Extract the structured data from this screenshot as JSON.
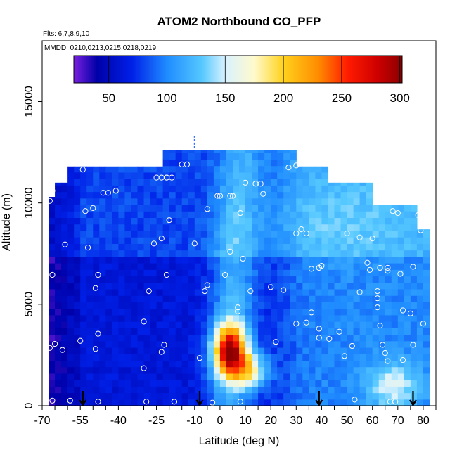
{
  "chart_data": {
    "type": "heatmap",
    "title": "ATOM2 Northbound CO_PFP",
    "annotations": [
      "Flts: 6,7,8,9,10",
      "MMDD: 0210,0213,0215,0218,0219"
    ],
    "xlabel": "Latitude (deg N)",
    "ylabel": "Altitude (m)",
    "xlim": [
      -70,
      85
    ],
    "ylim": [
      0,
      18000
    ],
    "x_ticks": [
      "-70",
      "-55",
      "-40",
      "-25",
      "-10",
      "0",
      "10",
      "20",
      "30",
      "40",
      "50",
      "60",
      "70",
      "80"
    ],
    "x_tick_values": [
      -70,
      -55,
      -40,
      -25,
      -10,
      0,
      10,
      20,
      30,
      40,
      50,
      60,
      70,
      80
    ],
    "x_minor_ticks": [
      -65,
      -60,
      -50,
      -45,
      -35,
      -30,
      -20,
      -15,
      -5,
      5,
      15,
      25,
      35,
      45,
      55,
      65,
      75,
      85
    ],
    "y_ticks": [
      "0",
      "5000",
      "10000",
      "15000"
    ],
    "y_tick_values": [
      0,
      5000,
      10000,
      15000
    ],
    "colorbar": {
      "min": 20,
      "max": 302,
      "ticks": [
        "50",
        "100",
        "150",
        "200",
        "250",
        "300"
      ],
      "tick_values": [
        50,
        100,
        150,
        200,
        250,
        300
      ],
      "colors": [
        {
          "v": 20,
          "c": "#7a1fe0"
        },
        {
          "v": 40,
          "c": "#0000a8"
        },
        {
          "v": 70,
          "c": "#0020e8"
        },
        {
          "v": 100,
          "c": "#1f8cff"
        },
        {
          "v": 130,
          "c": "#55c8ff"
        },
        {
          "v": 150,
          "c": "#d8f2ff"
        },
        {
          "v": 175,
          "c": "#fffacc"
        },
        {
          "v": 200,
          "c": "#ffd21c"
        },
        {
          "v": 230,
          "c": "#ff8c00"
        },
        {
          "v": 255,
          "c": "#ff1c00"
        },
        {
          "v": 280,
          "c": "#d00000"
        },
        {
          "v": 302,
          "c": "#8c0000"
        }
      ]
    },
    "profile_latitudes": [
      -54,
      -8,
      39,
      76
    ],
    "samples": [
      [
        -67,
        10100
      ],
      [
        -66,
        10600
      ],
      [
        -67,
        11300
      ],
      [
        -62,
        11800
      ],
      [
        -61,
        7950
      ],
      [
        -66,
        6450
      ],
      [
        -67,
        2850
      ],
      [
        -65,
        3050
      ],
      [
        -62,
        2750
      ],
      [
        -66,
        250
      ],
      [
        -59,
        250
      ],
      [
        -54,
        11650
      ],
      [
        -53,
        9600
      ],
      [
        -52,
        7800
      ],
      [
        -55,
        3200
      ],
      [
        -50,
        9750
      ],
      [
        -46,
        10500
      ],
      [
        -44,
        10500
      ],
      [
        -41,
        10600
      ],
      [
        -49,
        5800
      ],
      [
        -48,
        6450
      ],
      [
        -48,
        3550
      ],
      [
        -49,
        2800
      ],
      [
        -48,
        200
      ],
      [
        -30,
        4150
      ],
      [
        -30,
        1850
      ],
      [
        -29,
        200
      ],
      [
        -26,
        8000
      ],
      [
        -28,
        5650
      ],
      [
        -25,
        11250
      ],
      [
        -23,
        11250
      ],
      [
        -21,
        11250
      ],
      [
        -21,
        11250
      ],
      [
        -19,
        11250
      ],
      [
        -15,
        11900
      ],
      [
        -13,
        11900
      ],
      [
        -23,
        8250
      ],
      [
        -20,
        9150
      ],
      [
        -21,
        6450
      ],
      [
        -23,
        2650
      ],
      [
        -22,
        3000
      ],
      [
        -18,
        200
      ],
      [
        -18,
        200
      ],
      [
        -10,
        8000
      ],
      [
        -5,
        5950
      ],
      [
        -6,
        5650
      ],
      [
        -5,
        9700
      ],
      [
        -8,
        2350
      ],
      [
        -3,
        150
      ],
      [
        -1,
        10350
      ],
      [
        0,
        10350
      ],
      [
        4,
        10350
      ],
      [
        5,
        10350
      ],
      [
        2,
        6450
      ],
      [
        4,
        7600
      ],
      [
        8,
        9500
      ],
      [
        9,
        7250
      ],
      [
        7,
        4850
      ],
      [
        7,
        4650
      ],
      [
        8,
        200
      ],
      [
        10,
        11000
      ],
      [
        14,
        10950
      ],
      [
        16,
        10950
      ],
      [
        17,
        10450
      ],
      [
        12,
        5650
      ],
      [
        20,
        5850
      ],
      [
        22,
        3150
      ],
      [
        25,
        5700
      ],
      [
        27,
        11750
      ],
      [
        30,
        11850
      ],
      [
        35,
        11950
      ],
      [
        30,
        8500
      ],
      [
        32,
        8700
      ],
      [
        34,
        8500
      ],
      [
        36,
        6750
      ],
      [
        40,
        6900
      ],
      [
        39,
        6800
      ],
      [
        30,
        4050
      ],
      [
        34,
        4100
      ],
      [
        36,
        4600
      ],
      [
        39,
        3800
      ],
      [
        39,
        3350
      ],
      [
        43,
        3300
      ],
      [
        47,
        3650
      ],
      [
        50,
        8500
      ],
      [
        55,
        8300
      ],
      [
        52,
        2950
      ],
      [
        49,
        2450
      ],
      [
        53,
        300
      ],
      [
        58,
        7050
      ],
      [
        60,
        8250
      ],
      [
        55,
        5600
      ],
      [
        59,
        6700
      ],
      [
        62,
        5650
      ],
      [
        62,
        5300
      ],
      [
        62,
        4850
      ],
      [
        63,
        3950
      ],
      [
        64,
        3000
      ],
      [
        65,
        2600
      ],
      [
        66,
        2200
      ],
      [
        63,
        6800
      ],
      [
        66,
        6800
      ],
      [
        66,
        6650
      ],
      [
        68,
        9600
      ],
      [
        70,
        9500
      ],
      [
        72,
        4700
      ],
      [
        71,
        6500
      ],
      [
        72,
        2250
      ],
      [
        75,
        4550
      ],
      [
        76,
        6850
      ],
      [
        76,
        3000
      ],
      [
        78,
        9400
      ],
      [
        79,
        8650
      ],
      [
        80,
        4050
      ],
      [
        67,
        200
      ],
      [
        69,
        200
      ]
    ]
  }
}
